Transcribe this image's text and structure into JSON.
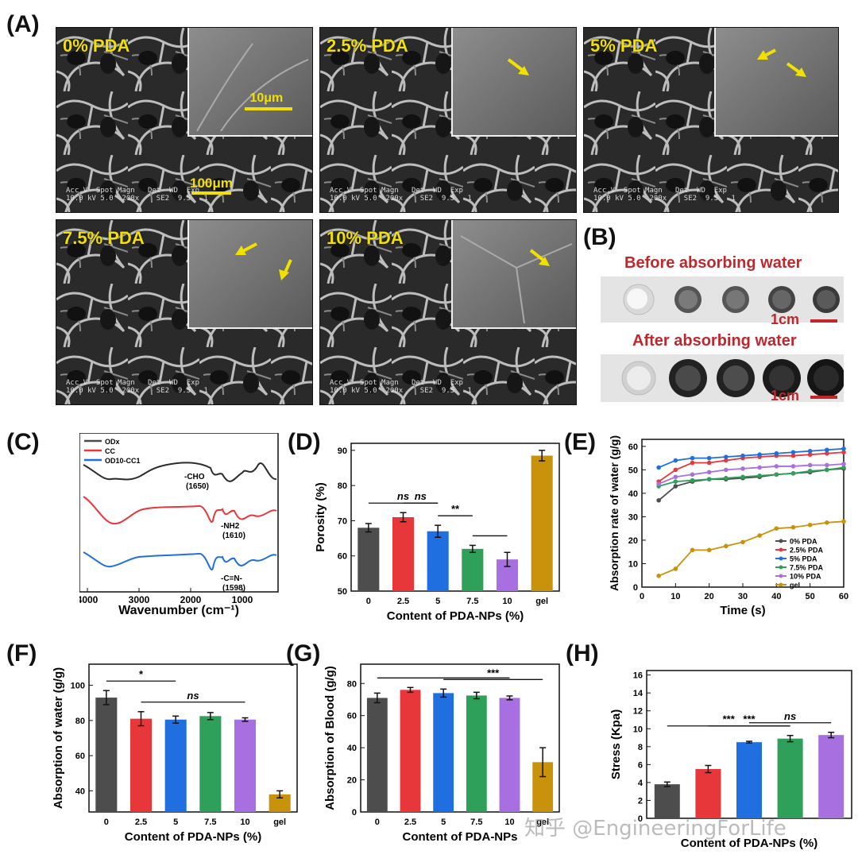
{
  "panels": {
    "A": "(A)",
    "B": "(B)",
    "C": "(C)",
    "D": "(D)",
    "E": "(E)",
    "F": "(F)",
    "G": "(G)",
    "H": "(H)"
  },
  "sem": {
    "images": [
      {
        "label": "0% PDA"
      },
      {
        "label": "2.5% PDA"
      },
      {
        "label": "5% PDA"
      },
      {
        "label": "7.5% PDA"
      },
      {
        "label": "10% PDA"
      }
    ],
    "scale_main": "100μm",
    "scale_inset": "10μm",
    "footer": "Acc.V  Spot Magn   Det  WD  Exp\n10.0 kV 5.0  200x    SE2  9.5   1",
    "footer_scale": "100 μm"
  },
  "photo": {
    "before": "Before absorbing water",
    "after": "After absorbing water",
    "scale": "1cm"
  },
  "watermark": "知乎 @EngineeringForLife",
  "colors": {
    "gray": "#4d4d4d",
    "red": "#e8373b",
    "blue": "#1f6fe0",
    "green": "#2fa05a",
    "purple": "#a86fe0",
    "gold": "#c8920b",
    "yellow": "#f2e000",
    "title_red": "#c0272d"
  },
  "chart_data": [
    {
      "id": "C",
      "type": "line",
      "xlabel": "Wavenumber (cm⁻¹)",
      "ylabel": "",
      "xticks": [
        "4000",
        "3000",
        "2000",
        "1000"
      ],
      "xlim": [
        4000,
        500
      ],
      "legend": [
        "ODx",
        "CC",
        "OD10-CC1"
      ],
      "annotations": [
        "-CHO (1650)",
        "-NH2 (1610)",
        "-C=N- (1598)"
      ]
    },
    {
      "id": "D",
      "type": "bar",
      "xlabel": "Content of PDA-NPs (%)",
      "ylabel": "Porosity (%)",
      "categories": [
        "0",
        "2.5",
        "5",
        "7.5",
        "10",
        "gel"
      ],
      "values": [
        68,
        71,
        67,
        62,
        59,
        88.5
      ],
      "errors": [
        1.2,
        1.3,
        1.7,
        1.0,
        2.0,
        1.5
      ],
      "yticks": [
        "50",
        "60",
        "70",
        "80",
        "90"
      ],
      "ylim": [
        50,
        92
      ],
      "sig": [
        {
          "from": 0,
          "to": 2,
          "text": "ns"
        },
        {
          "from": 1,
          "to": 2,
          "text": "ns"
        },
        {
          "from": 2,
          "to": 3,
          "text": "**"
        },
        {
          "from": 3,
          "to": 4,
          "text": ""
        }
      ]
    },
    {
      "id": "E",
      "type": "line",
      "xlabel": "Time (s)",
      "ylabel": "Absorption rate of water (g/g)",
      "xticks": [
        "0",
        "10",
        "20",
        "30",
        "40",
        "50",
        "60"
      ],
      "yticks": [
        "0",
        "10",
        "20",
        "30",
        "40",
        "50",
        "60"
      ],
      "xlim": [
        0,
        60
      ],
      "ylim": [
        0,
        63
      ],
      "x": [
        5,
        10,
        15,
        20,
        25,
        30,
        35,
        40,
        45,
        50,
        55,
        60
      ],
      "series": [
        {
          "name": "0% PDA",
          "values": [
            37,
            43,
            45,
            46,
            46,
            46.5,
            47,
            48,
            48.5,
            49,
            50,
            50.5
          ]
        },
        {
          "name": "2.5% PDA",
          "values": [
            45,
            50,
            53,
            53,
            54,
            55,
            55.5,
            56,
            56,
            56.5,
            57,
            57.5
          ]
        },
        {
          "name": "5% PDA",
          "values": [
            51,
            54,
            55,
            55,
            55.5,
            56,
            56.5,
            57,
            57.5,
            58,
            58.5,
            59
          ]
        },
        {
          "name": "7.5% PDA",
          "values": [
            43,
            45,
            45.5,
            46,
            46.5,
            47,
            47.5,
            48,
            48.5,
            49.5,
            50,
            51
          ]
        },
        {
          "name": "10% PDA",
          "values": [
            44,
            47,
            48,
            49,
            50,
            50.5,
            51,
            51.5,
            51.5,
            52,
            52,
            52.5
          ]
        },
        {
          "name": "gel",
          "values": [
            4.8,
            7.8,
            15.8,
            15.8,
            17.5,
            19.2,
            22,
            25,
            25.5,
            26.5,
            27.5,
            28
          ]
        }
      ]
    },
    {
      "id": "F",
      "type": "bar",
      "xlabel": "Content of PDA-NPs (%)",
      "ylabel": "Absorption of water (g/g)",
      "categories": [
        "0",
        "2.5",
        "5",
        "7.5",
        "10",
        "gel"
      ],
      "values": [
        93,
        81,
        80.5,
        82.5,
        80.5,
        38
      ],
      "errors": [
        4,
        4,
        2,
        2,
        1,
        2
      ],
      "yticks": [
        "40",
        "60",
        "80",
        "100"
      ],
      "ylim": [
        28,
        112
      ],
      "sig": [
        {
          "from": 0,
          "to": 2,
          "text": "*"
        },
        {
          "from": 1,
          "to": 4,
          "text": "ns"
        }
      ]
    },
    {
      "id": "G",
      "type": "bar",
      "xlabel": "Content of PDA-NPs",
      "ylabel": "Absorption of Blood (g/g)",
      "categories": [
        "0",
        "2.5",
        "5",
        "7.5",
        "10",
        "gel"
      ],
      "values": [
        71,
        76,
        74,
        72.5,
        71,
        31
      ],
      "errors": [
        3,
        1.5,
        2.5,
        2,
        1.2,
        9
      ],
      "yticks": [
        "0",
        "20",
        "40",
        "60",
        "80"
      ],
      "ylim": [
        0,
        92
      ],
      "sig": [
        {
          "from": 0,
          "to": 4,
          "text": ""
        },
        {
          "from": 2,
          "to": 5,
          "text": "***"
        }
      ]
    },
    {
      "id": "H",
      "type": "bar",
      "xlabel": "Content of PDA-NPs (%)",
      "ylabel": "Stress (Kpa)",
      "categories": [
        "",
        "",
        "",
        "",
        ""
      ],
      "values": [
        3.8,
        5.5,
        8.5,
        8.9,
        9.3
      ],
      "errors": [
        0.25,
        0.4,
        0.1,
        0.35,
        0.3
      ],
      "yticks": [
        "0",
        "2",
        "4",
        "6",
        "8",
        "10",
        "12",
        "14",
        "16"
      ],
      "ylim": [
        0,
        16.5
      ],
      "sig": [
        {
          "from": 0,
          "to": 3,
          "text": "***"
        },
        {
          "from": 1,
          "to": 3,
          "text": "***"
        },
        {
          "from": 2,
          "to": 4,
          "text": "ns"
        }
      ]
    }
  ]
}
